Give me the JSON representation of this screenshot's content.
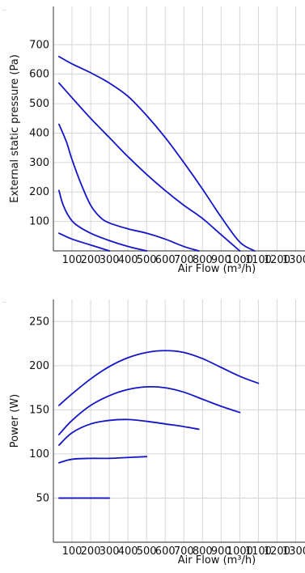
{
  "chart_data": [
    {
      "type": "line",
      "title": "",
      "xlabel": "Air Flow (m³/h)",
      "ylabel": "External static pressure (Pa)",
      "xlim": [
        0,
        1350
      ],
      "ylim": [
        0,
        830
      ],
      "x_ticks": [
        100,
        200,
        300,
        400,
        500,
        600,
        700,
        800,
        900,
        1000,
        1100,
        1200,
        1300
      ],
      "y_ticks": [
        100,
        200,
        300,
        400,
        500,
        600,
        700
      ],
      "grid": true,
      "line_color": "#1515c8",
      "series": [
        {
          "x": [
            30,
            100,
            200,
            300,
            400,
            500,
            600,
            700,
            800,
            900,
            1000,
            1080
          ],
          "values": [
            660,
            635,
            605,
            570,
            525,
            460,
            385,
            300,
            210,
            115,
            30,
            0
          ]
        },
        {
          "x": [
            30,
            100,
            200,
            300,
            400,
            500,
            600,
            700,
            800,
            900,
            1000
          ],
          "values": [
            570,
            520,
            450,
            385,
            320,
            260,
            205,
            155,
            110,
            55,
            0
          ]
        },
        {
          "x": [
            30,
            70,
            100,
            150,
            200,
            250,
            300,
            400,
            500,
            600,
            700,
            780
          ],
          "values": [
            430,
            370,
            310,
            225,
            155,
            115,
            95,
            75,
            60,
            40,
            15,
            0
          ]
        },
        {
          "x": [
            30,
            50,
            80,
            120,
            200,
            300,
            400,
            500
          ],
          "values": [
            205,
            160,
            120,
            90,
            60,
            35,
            15,
            0
          ]
        },
        {
          "x": [
            30,
            100,
            200,
            300
          ],
          "values": [
            60,
            40,
            20,
            0
          ]
        }
      ]
    },
    {
      "type": "line",
      "title": "",
      "xlabel": "Air Flow (m³/h)",
      "ylabel": "Power (W)",
      "xlim": [
        0,
        1350
      ],
      "ylim": [
        0,
        275
      ],
      "x_ticks": [
        100,
        200,
        300,
        400,
        500,
        600,
        700,
        800,
        900,
        1000,
        1100,
        1200,
        1300
      ],
      "y_ticks": [
        50,
        100,
        150,
        200,
        250
      ],
      "grid": true,
      "line_color": "#1515c8",
      "series": [
        {
          "x": [
            30,
            100,
            200,
            300,
            400,
            500,
            600,
            700,
            800,
            900,
            1000,
            1100
          ],
          "values": [
            155,
            168,
            185,
            199,
            209,
            215,
            217,
            215,
            208,
            198,
            188,
            180
          ]
        },
        {
          "x": [
            30,
            100,
            200,
            300,
            400,
            500,
            600,
            700,
            800,
            900,
            1000
          ],
          "values": [
            122,
            138,
            155,
            166,
            173,
            176,
            175,
            170,
            162,
            154,
            147
          ]
        },
        {
          "x": [
            30,
            100,
            200,
            300,
            400,
            500,
            600,
            700,
            780
          ],
          "values": [
            110,
            124,
            134,
            138,
            139,
            137,
            134,
            131,
            128
          ]
        },
        {
          "x": [
            30,
            100,
            200,
            300,
            400,
            500
          ],
          "values": [
            90,
            94,
            95,
            95,
            96,
            97
          ]
        },
        {
          "x": [
            30,
            100,
            200,
            300
          ],
          "values": [
            50,
            50,
            50,
            50
          ]
        }
      ]
    }
  ]
}
